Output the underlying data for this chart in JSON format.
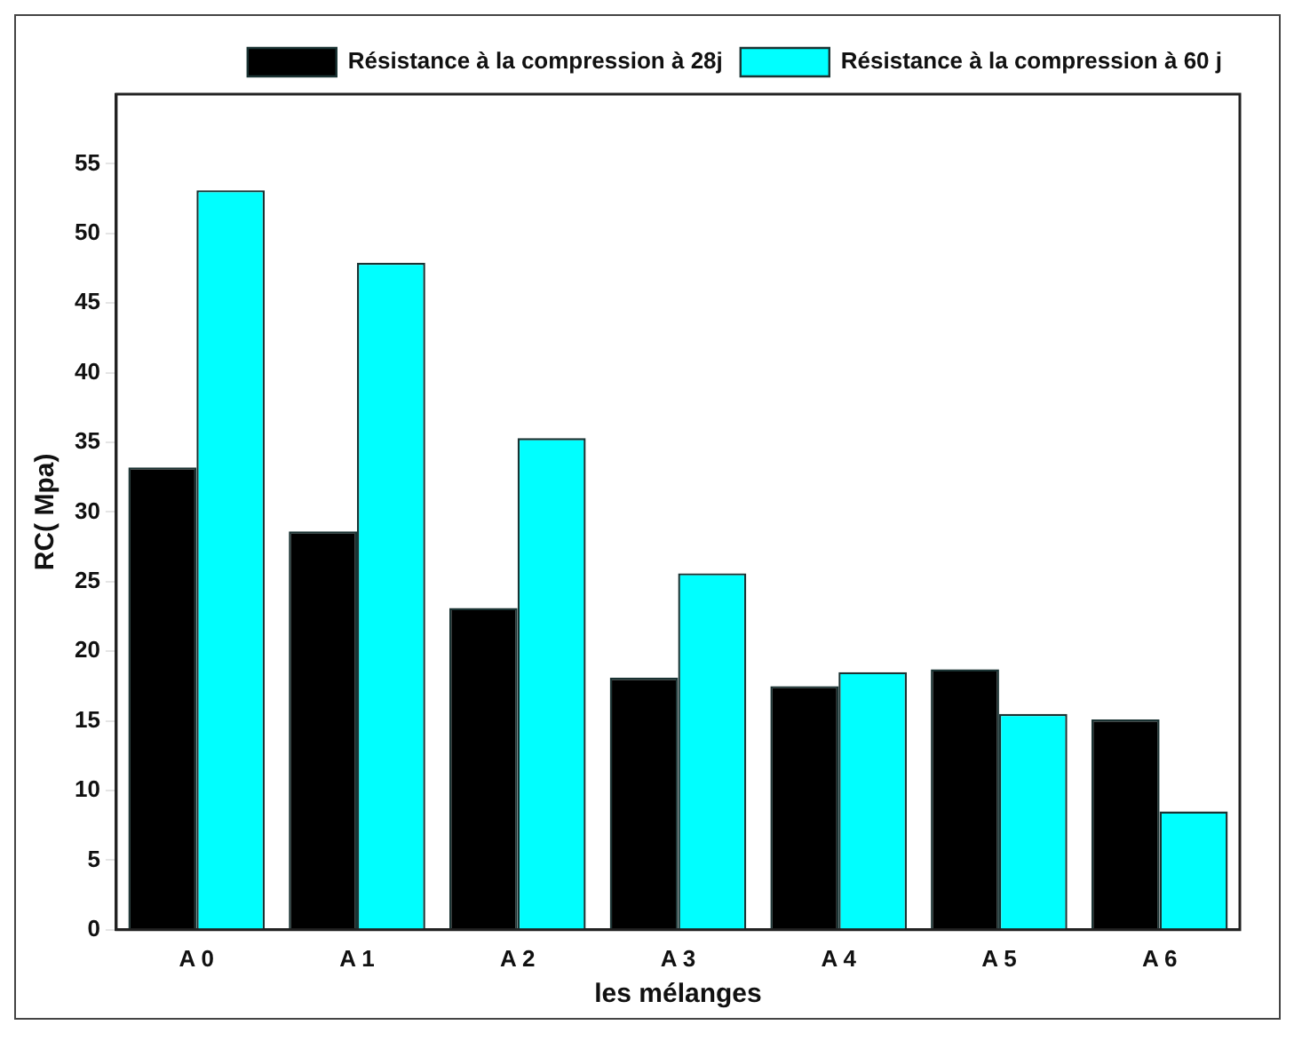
{
  "chart_data": {
    "type": "bar",
    "xlabel": "les mélanges",
    "ylabel": "RC( Mpa)",
    "categories": [
      "A 0",
      "A 1",
      "A 2",
      "A 3",
      "A 4",
      "A 5",
      "A 6"
    ],
    "series": [
      {
        "name": "Résistance à la compression à 28j",
        "color": "#000000",
        "values": [
          33.2,
          28.6,
          23.1,
          18.1,
          17.5,
          18.7,
          15.1
        ]
      },
      {
        "name": "Résistance à la compression à 60 j",
        "color": "#00ffff",
        "values": [
          53.1,
          47.9,
          35.3,
          25.6,
          18.5,
          15.5,
          8.5
        ]
      }
    ],
    "ylim": [
      0,
      60
    ],
    "yticks": [
      0,
      5,
      10,
      15,
      20,
      25,
      30,
      35,
      40,
      45,
      50,
      55
    ],
    "grid": false,
    "legend": "top right"
  }
}
